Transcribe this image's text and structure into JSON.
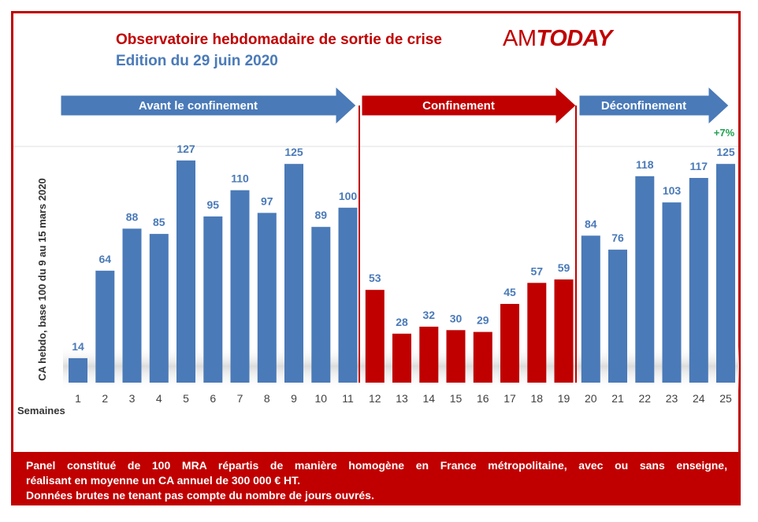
{
  "header": {
    "title": "Observatoire hebdomadaire de sortie de crise",
    "subtitle": "Edition du 29 juin 2020",
    "logo_am": "AM",
    "logo_today": "TODAY"
  },
  "phases": [
    {
      "label": "Avant le confinement",
      "color": "#4a7ab8"
    },
    {
      "label": "Confinement",
      "color": "#c00000"
    },
    {
      "label": "Déconfinement",
      "color": "#4a7ab8"
    }
  ],
  "chart_data": {
    "type": "bar",
    "categories": [
      "1",
      "2",
      "3",
      "4",
      "5",
      "6",
      "7",
      "8",
      "9",
      "10",
      "11",
      "12",
      "13",
      "14",
      "15",
      "16",
      "17",
      "18",
      "19",
      "20",
      "21",
      "22",
      "23",
      "24",
      "25"
    ],
    "values": [
      14,
      64,
      88,
      85,
      127,
      95,
      110,
      97,
      125,
      89,
      100,
      53,
      28,
      32,
      30,
      29,
      45,
      57,
      59,
      84,
      76,
      118,
      103,
      117,
      125
    ],
    "phase_of_week": [
      "avant",
      "avant",
      "avant",
      "avant",
      "avant",
      "avant",
      "avant",
      "avant",
      "avant",
      "avant",
      "avant",
      "confinement",
      "confinement",
      "confinement",
      "confinement",
      "confinement",
      "confinement",
      "confinement",
      "confinement",
      "deconfinement",
      "deconfinement",
      "deconfinement",
      "deconfinement",
      "deconfinement",
      "deconfinement"
    ],
    "colors": {
      "avant": "#4a7ab8",
      "confinement": "#c00000",
      "deconfinement": "#4a7ab8"
    },
    "ylabel": "CA hebdo, base 100 du 9 au 15 mars 2020",
    "xlabel": "Semaines",
    "ylim": [
      0,
      135
    ],
    "grid": false,
    "annotation": "+7%",
    "annotation_color": "#20a050"
  },
  "footer": {
    "line1": "Panel constitué de 100 MRA répartis de manière homogène en France métropolitaine, avec ou sans enseigne,",
    "line2": "réalisant en moyenne un CA annuel de 300 000 € HT.",
    "line3": "Données brutes ne tenant pas compte du nombre de jours ouvrés."
  }
}
